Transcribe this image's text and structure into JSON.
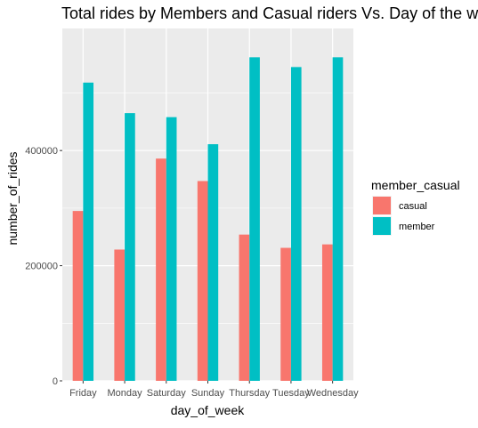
{
  "chart_data": {
    "type": "bar",
    "title": "Total rides by Members and Casual riders Vs. Day of the week",
    "xlabel": "day_of_week",
    "ylabel": "number_of_rides",
    "categories": [
      "Friday",
      "Monday",
      "Saturday",
      "Sunday",
      "Thursday",
      "Tuesday",
      "Wednesday"
    ],
    "series": [
      {
        "name": "casual",
        "color": "#F8766D",
        "values": [
          295000,
          228000,
          386000,
          347000,
          254000,
          231000,
          237000
        ]
      },
      {
        "name": "member",
        "color": "#00BFC4",
        "values": [
          518000,
          465000,
          458000,
          411000,
          562000,
          545000,
          562000
        ]
      }
    ],
    "ylim": [
      0,
      612000
    ],
    "yticks": [
      0,
      200000,
      400000
    ],
    "ytick_labels": [
      "0",
      "200000",
      "400000"
    ],
    "legend": {
      "title": "member_casual",
      "position": "right"
    },
    "grid": true,
    "panel_background": "#EBEBEB"
  }
}
